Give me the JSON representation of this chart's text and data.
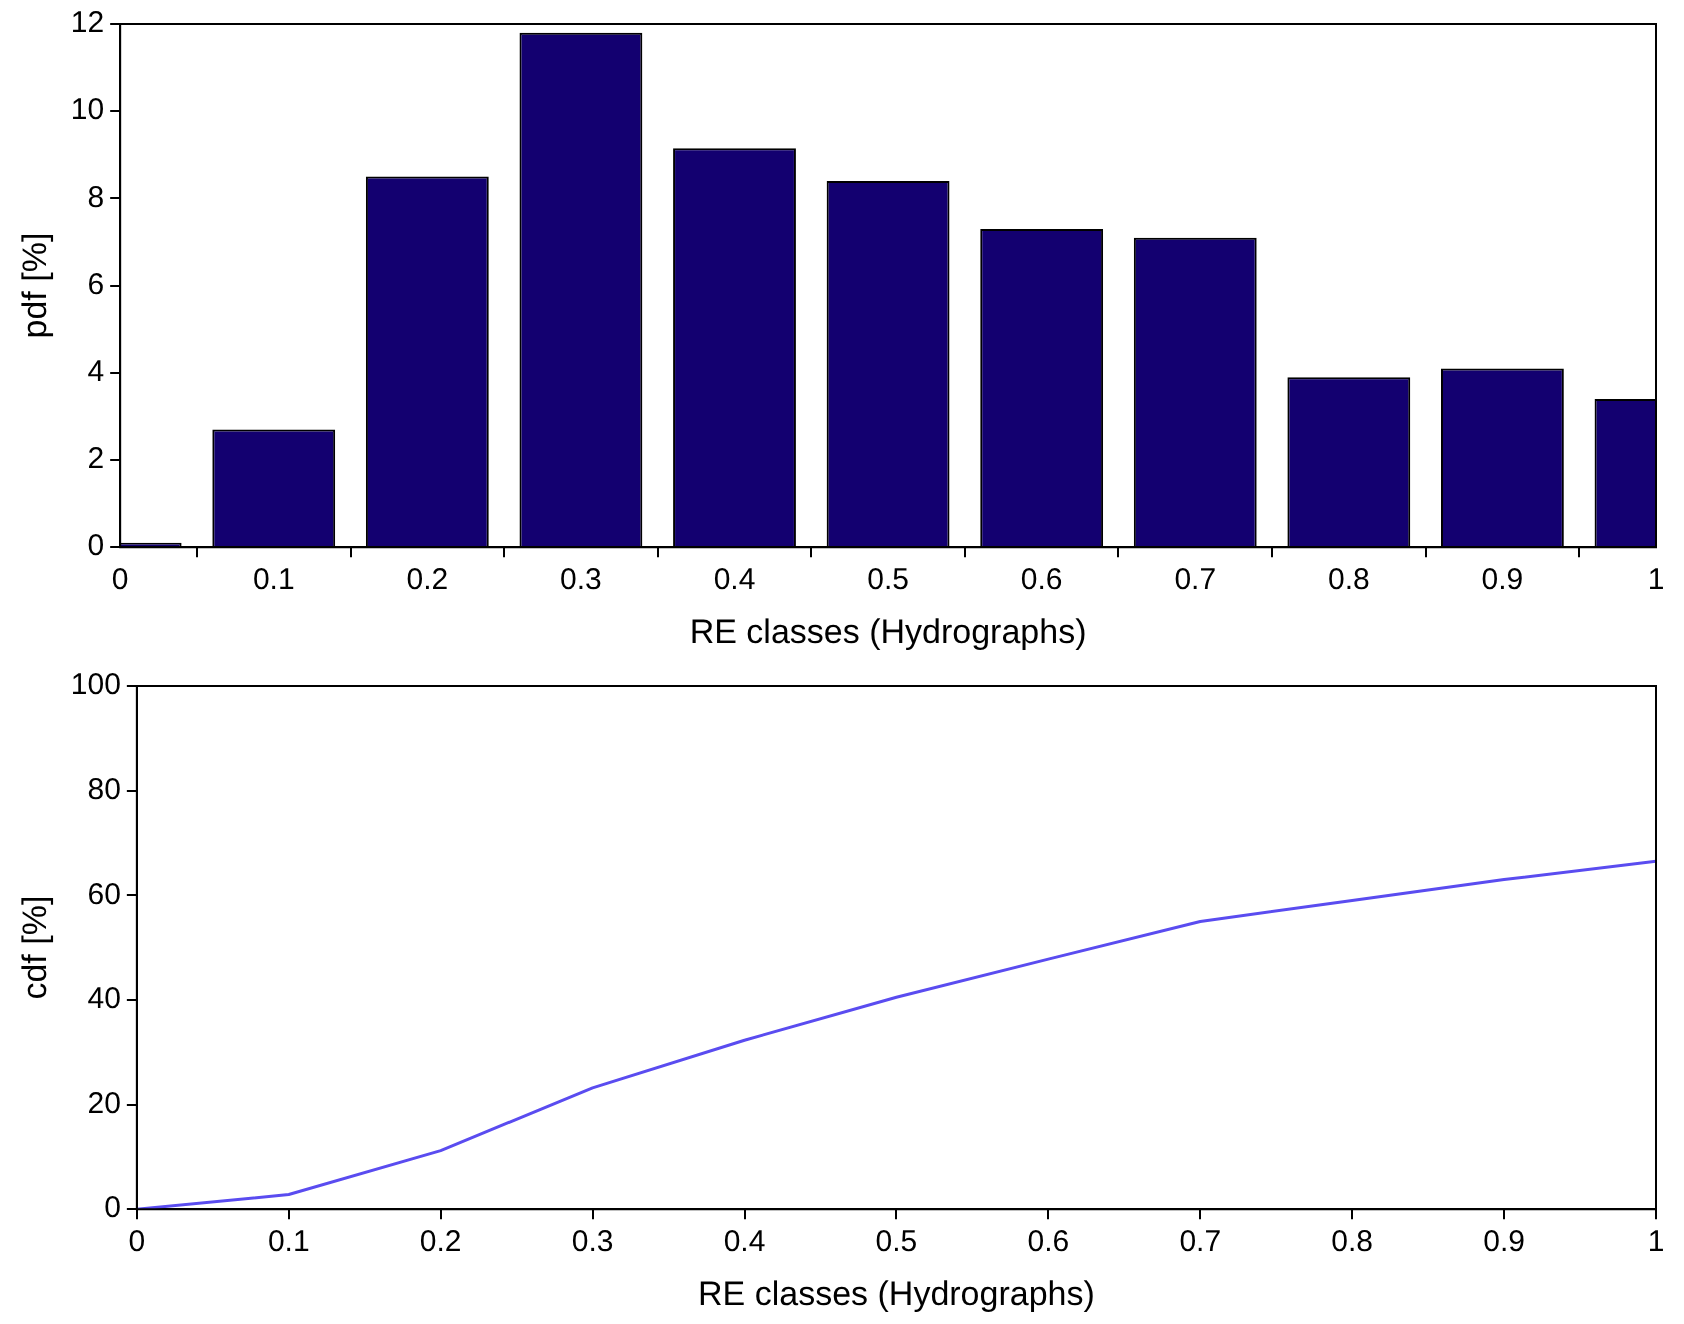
{
  "chart_data": [
    {
      "type": "bar",
      "xlabel": "RE classes (Hydrographs)",
      "ylabel": "pdf [%]",
      "x": [
        0,
        0.1,
        0.2,
        0.3,
        0.4,
        0.5,
        0.6,
        0.7,
        0.8,
        0.9,
        1
      ],
      "values": [
        0.1,
        2.7,
        8.5,
        11.8,
        9.15,
        8.4,
        7.3,
        7.1,
        3.9,
        4.1,
        3.4
      ],
      "color": "#130070",
      "xlim": [
        0,
        1
      ],
      "xticks": [
        0,
        0.1,
        0.2,
        0.3,
        0.4,
        0.5,
        0.6,
        0.7,
        0.8,
        0.9,
        1
      ],
      "ylim": [
        0,
        12
      ],
      "yticks": [
        0,
        2,
        4,
        6,
        8,
        10,
        12
      ],
      "grid": false,
      "legend": false
    },
    {
      "type": "line",
      "xlabel": "RE classes (Hydrographs)",
      "ylabel": "cdf [%]",
      "x": [
        0,
        0.1,
        0.2,
        0.3,
        0.4,
        0.5,
        0.6,
        0.7,
        0.8,
        0.9,
        1
      ],
      "values": [
        0,
        2.8,
        11.2,
        23.2,
        32.3,
        40.5,
        47.8,
        55,
        59,
        63,
        66.5
      ],
      "color": "#5a4cf0",
      "marker": "none",
      "line_style": "solid",
      "xlim": [
        0,
        1
      ],
      "xticks": [
        0,
        0.1,
        0.2,
        0.3,
        0.4,
        0.5,
        0.6,
        0.7,
        0.8,
        0.9,
        1
      ],
      "ylim": [
        0,
        100
      ],
      "yticks": [
        0,
        20,
        40,
        60,
        80,
        100
      ],
      "grid": false,
      "legend": false
    }
  ]
}
